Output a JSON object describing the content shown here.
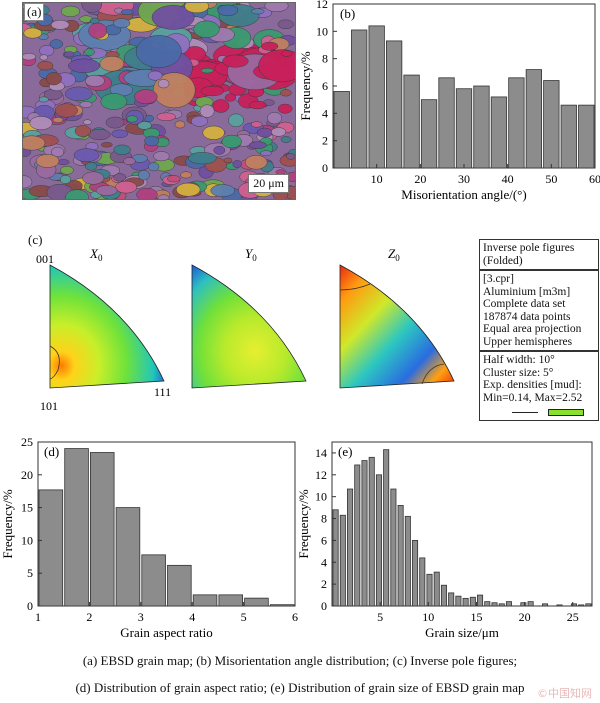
{
  "panel_a": {
    "label": "(a)",
    "scale_bar": "20 μm"
  },
  "panel_c": {
    "label": "(c)",
    "titles": [
      "X",
      "Y",
      "Z"
    ],
    "title_subscript": "0",
    "corner_labels": {
      "top": "001",
      "bottom_left": "101",
      "bottom_right": "111"
    },
    "legend": {
      "header": [
        "Inverse pole figures",
        "(Folded)"
      ],
      "info": [
        "[3.cpr]",
        "Aluminium [m3m]",
        "Complete data set",
        "187874 data points",
        "Equal area projection",
        "Upper hemispheres"
      ],
      "params": [
        "Half width: 10°",
        "Cluster size: 5°",
        "Exp. densities [mud]:",
        "Min=0.14, Max=2.52"
      ]
    }
  },
  "chart_data": [
    {
      "type": "bar",
      "panel": "(b)",
      "xlabel": "Misorientation angle/(°)",
      "ylabel": "Frequency/%",
      "xlim": [
        0,
        60
      ],
      "ylim": [
        0,
        12
      ],
      "xticks": [
        10,
        20,
        30,
        40,
        50,
        60
      ],
      "yticks": [
        0,
        2,
        4,
        6,
        8,
        10,
        12
      ],
      "bin_width": 4,
      "x": [
        0,
        4,
        8,
        12,
        16,
        20,
        24,
        28,
        32,
        36,
        40,
        44,
        48,
        52,
        56
      ],
      "values": [
        5.6,
        10.1,
        10.4,
        9.3,
        6.8,
        5.0,
        6.6,
        5.8,
        6.0,
        5.2,
        6.6,
        7.2,
        6.4,
        4.6,
        4.6
      ]
    },
    {
      "type": "bar",
      "panel": "(d)",
      "xlabel": "Grain aspect ratio",
      "ylabel": "Frequency/%",
      "xlim": [
        1,
        6
      ],
      "ylim": [
        0,
        25
      ],
      "xticks": [
        1,
        2,
        3,
        4,
        5,
        6
      ],
      "yticks": [
        0,
        5,
        10,
        15,
        20,
        25
      ],
      "bin_width": 0.5,
      "x": [
        1.0,
        1.5,
        2.0,
        2.5,
        3.0,
        3.5,
        4.0,
        4.5,
        5.0,
        5.5
      ],
      "values": [
        17.7,
        24.0,
        23.4,
        15.0,
        7.8,
        6.2,
        1.7,
        1.7,
        1.2,
        0.2
      ]
    },
    {
      "type": "bar",
      "panel": "(e)",
      "xlabel": "Grain size/μm",
      "ylabel": "Frequency/%",
      "xlim": [
        0,
        27
      ],
      "ylim": [
        0,
        15
      ],
      "xticks": [
        5,
        10,
        15,
        20,
        25
      ],
      "yticks": [
        0,
        2,
        4,
        6,
        8,
        10,
        12,
        14
      ],
      "bin_width": 0.75,
      "x": [
        0,
        0.75,
        1.5,
        2.25,
        3,
        3.75,
        4.5,
        5.25,
        6,
        6.75,
        7.5,
        8.25,
        9,
        9.75,
        10.5,
        11.25,
        12,
        12.75,
        13.5,
        14.25,
        15,
        15.75,
        16.5,
        17.25,
        18,
        19.5,
        20.25,
        21.75,
        23.25,
        24.75,
        25.5,
        26.25
      ],
      "values": [
        8.8,
        8.3,
        10.7,
        12.9,
        13.3,
        13.6,
        12.0,
        14.3,
        10.7,
        9.2,
        8.2,
        6.0,
        4.4,
        2.9,
        3.1,
        1.9,
        1.2,
        0.9,
        0.7,
        0.8,
        1.0,
        0.4,
        0.3,
        0.2,
        0.4,
        0.3,
        0.4,
        0.2,
        0.1,
        0.2,
        0.1,
        0.2
      ]
    }
  ],
  "caption": {
    "line1": "(a) EBSD grain map; (b) Misorientation angle distribution; (c) Inverse pole figures;",
    "line2": "(d) Distribution of  grain aspect ratio; (e) Distribution of grain size of EBSD grain map"
  },
  "watermark": "©中国知网"
}
